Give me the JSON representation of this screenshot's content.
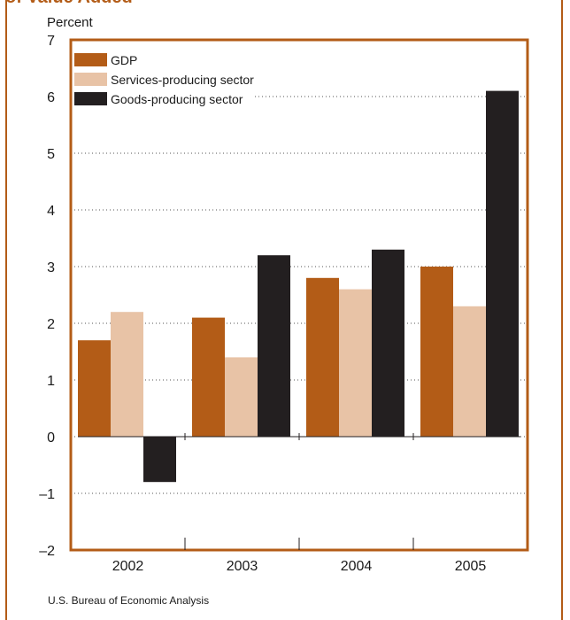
{
  "header": {
    "title_fragment": "of Value Added"
  },
  "chart_data": {
    "type": "bar",
    "ylabel": "Percent",
    "categories": [
      "2002",
      "2003",
      "2004",
      "2005"
    ],
    "ylim": [
      -2,
      7
    ],
    "yticks": [
      "7",
      "6",
      "5",
      "4",
      "3",
      "2",
      "1",
      "0",
      "–1",
      "–2"
    ],
    "grid": true,
    "legend_position": "top-left",
    "series": [
      {
        "name": "GDP",
        "values": [
          1.7,
          2.1,
          2.8,
          3.0
        ]
      },
      {
        "name": "Services-producing sector",
        "values": [
          2.2,
          1.4,
          2.6,
          2.3
        ]
      },
      {
        "name": "Goods-producing sector",
        "values": [
          -0.8,
          3.2,
          3.3,
          6.1
        ]
      }
    ],
    "colors": [
      "#b35c17",
      "#e8c3a6",
      "#231f20"
    ]
  },
  "source": "U.S. Bureau of Economic Analysis",
  "accent_color": "#b35c17"
}
